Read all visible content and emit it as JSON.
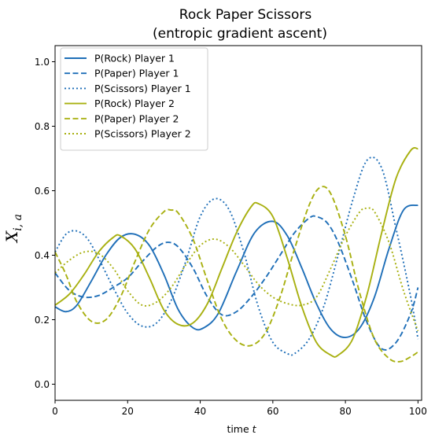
{
  "chart_data": {
    "type": "line",
    "title_line1": "Rock Paper Scissors",
    "title_line2": "(entropic gradient ascent)",
    "xlabel": "time t",
    "ylabel": "X_{i,a}",
    "xlim": [
      0,
      101
    ],
    "ylim": [
      -0.05,
      1.05
    ],
    "xticks": [
      0,
      20,
      40,
      60,
      80,
      100
    ],
    "yticks": [
      0.0,
      0.2,
      0.4,
      0.6,
      0.8,
      1.0
    ],
    "xtick_labels": [
      "0",
      "20",
      "40",
      "60",
      "80",
      "100"
    ],
    "ytick_labels": [
      "0.0",
      "0.2",
      "0.4",
      "0.6",
      "0.8",
      "1.0"
    ],
    "grid": false,
    "legend_position": "upper-left",
    "colors": {
      "player1": "#1f6fb8",
      "player2": "#a8b010"
    },
    "series": [
      {
        "name": "P(Rock) Player 1",
        "color": "#1f6fb8",
        "dash": "solid",
        "x": [
          0,
          3,
          6,
          10,
          14,
          18,
          22,
          26,
          30,
          34,
          38,
          41,
          45,
          50,
          55,
          60,
          64,
          68,
          72,
          76,
          80,
          84,
          88,
          92,
          96,
          100
        ],
        "y": [
          0.24,
          0.225,
          0.245,
          0.32,
          0.4,
          0.455,
          0.465,
          0.43,
          0.34,
          0.23,
          0.175,
          0.175,
          0.22,
          0.35,
          0.47,
          0.505,
          0.46,
          0.36,
          0.25,
          0.17,
          0.145,
          0.175,
          0.27,
          0.42,
          0.54,
          0.555
        ]
      },
      {
        "name": "P(Paper) Player 1",
        "color": "#1f6fb8",
        "dash": "dashed",
        "x": [
          0,
          4,
          8,
          12,
          16,
          20,
          24,
          28,
          31,
          34,
          38,
          42,
          46,
          50,
          54,
          58,
          62,
          66,
          70,
          72,
          75,
          78,
          82,
          86,
          90,
          94,
          98,
          100
        ],
        "y": [
          0.345,
          0.29,
          0.27,
          0.275,
          0.3,
          0.33,
          0.38,
          0.425,
          0.44,
          0.425,
          0.36,
          0.27,
          0.215,
          0.225,
          0.27,
          0.33,
          0.4,
          0.47,
          0.515,
          0.52,
          0.5,
          0.44,
          0.32,
          0.19,
          0.11,
          0.13,
          0.22,
          0.3
        ]
      },
      {
        "name": "P(Scissors) Player 1",
        "color": "#1f6fb8",
        "dash": "dotted",
        "x": [
          0,
          3,
          6,
          9,
          12,
          16,
          20,
          24,
          28,
          32,
          36,
          40,
          44,
          48,
          52,
          56,
          60,
          64,
          66,
          70,
          74,
          78,
          82,
          86,
          90,
          94,
          98,
          100
        ],
        "y": [
          0.41,
          0.465,
          0.475,
          0.45,
          0.39,
          0.3,
          0.22,
          0.18,
          0.19,
          0.26,
          0.38,
          0.52,
          0.575,
          0.54,
          0.41,
          0.24,
          0.13,
          0.095,
          0.095,
          0.14,
          0.24,
          0.4,
          0.57,
          0.695,
          0.67,
          0.48,
          0.27,
          0.14
        ]
      },
      {
        "name": "P(Rock) Player 2",
        "color": "#a8b010",
        "dash": "solid",
        "x": [
          0,
          4,
          8,
          12,
          16,
          18,
          22,
          26,
          30,
          34,
          38,
          42,
          46,
          50,
          54,
          56,
          60,
          64,
          68,
          72,
          76,
          78,
          82,
          86,
          90,
          94,
          98,
          100
        ],
        "y": [
          0.245,
          0.28,
          0.34,
          0.41,
          0.455,
          0.46,
          0.42,
          0.33,
          0.23,
          0.185,
          0.19,
          0.25,
          0.36,
          0.47,
          0.55,
          0.56,
          0.52,
          0.39,
          0.24,
          0.13,
          0.09,
          0.09,
          0.14,
          0.28,
          0.47,
          0.64,
          0.725,
          0.73
        ]
      },
      {
        "name": "P(Paper) Player 2",
        "color": "#a8b010",
        "dash": "dashed",
        "x": [
          0,
          3,
          6,
          10,
          14,
          18,
          22,
          26,
          30,
          32,
          34,
          38,
          42,
          46,
          50,
          54,
          58,
          62,
          66,
          70,
          73,
          76,
          80,
          84,
          88,
          92,
          95,
          98,
          100
        ],
        "y": [
          0.41,
          0.34,
          0.255,
          0.195,
          0.2,
          0.27,
          0.38,
          0.48,
          0.535,
          0.54,
          0.53,
          0.45,
          0.32,
          0.2,
          0.135,
          0.12,
          0.16,
          0.27,
          0.42,
          0.555,
          0.61,
          0.59,
          0.46,
          0.28,
          0.14,
          0.08,
          0.07,
          0.085,
          0.1
        ]
      },
      {
        "name": "P(Scissors) Player 2",
        "color": "#a8b010",
        "dash": "dotted",
        "x": [
          0,
          4,
          8,
          12,
          16,
          20,
          24,
          28,
          32,
          36,
          40,
          44,
          48,
          52,
          56,
          60,
          64,
          68,
          72,
          76,
          80,
          84,
          86,
          88,
          92,
          96,
          100
        ],
        "y": [
          0.345,
          0.385,
          0.41,
          0.405,
          0.36,
          0.29,
          0.245,
          0.255,
          0.3,
          0.37,
          0.43,
          0.45,
          0.425,
          0.37,
          0.31,
          0.27,
          0.25,
          0.245,
          0.27,
          0.36,
          0.46,
          0.535,
          0.545,
          0.535,
          0.44,
          0.29,
          0.165
        ]
      }
    ]
  }
}
